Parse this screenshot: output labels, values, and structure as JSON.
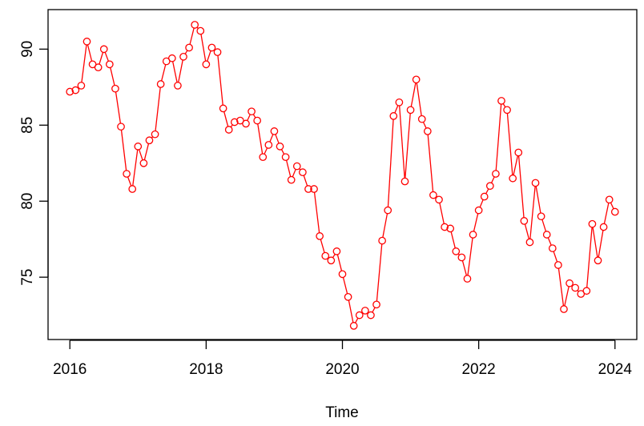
{
  "chart_data": {
    "type": "line",
    "title": "",
    "xlabel": "Time",
    "ylabel": "",
    "xlim": [
      2015.68,
      2024.32
    ],
    "ylim": [
      70.9,
      92.6
    ],
    "x_ticks": [
      2016,
      2018,
      2020,
      2022,
      2024
    ],
    "y_ticks": [
      75,
      80,
      85,
      90
    ],
    "grid": false,
    "legend": "none",
    "series": [
      {
        "color": "#ff0000",
        "marker": "open-circle",
        "x": [
          2016.0,
          2016.0833,
          2016.1667,
          2016.25,
          2016.3333,
          2016.4167,
          2016.5,
          2016.5833,
          2016.6667,
          2016.75,
          2016.8333,
          2016.9167,
          2017.0,
          2017.0833,
          2017.1667,
          2017.25,
          2017.3333,
          2017.4167,
          2017.5,
          2017.5833,
          2017.6667,
          2017.75,
          2017.8333,
          2017.9167,
          2018.0,
          2018.0833,
          2018.1667,
          2018.25,
          2018.3333,
          2018.4167,
          2018.5,
          2018.5833,
          2018.6667,
          2018.75,
          2018.8333,
          2018.9167,
          2019.0,
          2019.0833,
          2019.1667,
          2019.25,
          2019.3333,
          2019.4167,
          2019.5,
          2019.5833,
          2019.6667,
          2019.75,
          2019.8333,
          2019.9167,
          2020.0,
          2020.0833,
          2020.1667,
          2020.25,
          2020.3333,
          2020.4167,
          2020.5,
          2020.5833,
          2020.6667,
          2020.75,
          2020.8333,
          2020.9167,
          2021.0,
          2021.0833,
          2021.1667,
          2021.25,
          2021.3333,
          2021.4167,
          2021.5,
          2021.5833,
          2021.6667,
          2021.75,
          2021.8333,
          2021.9167,
          2022.0,
          2022.0833,
          2022.1667,
          2022.25,
          2022.3333,
          2022.4167,
          2022.5,
          2022.5833,
          2022.6667,
          2022.75,
          2022.8333,
          2022.9167,
          2023.0,
          2023.0833,
          2023.1667,
          2023.25,
          2023.3333,
          2023.4167,
          2023.5,
          2023.5833,
          2023.6667,
          2023.75,
          2023.8333,
          2023.9167,
          2024.0
        ],
        "y": [
          87.2,
          87.3,
          87.6,
          90.5,
          89.0,
          88.8,
          90.0,
          89.0,
          87.4,
          84.9,
          81.8,
          80.8,
          83.6,
          82.5,
          84.0,
          84.4,
          87.7,
          89.2,
          89.4,
          87.6,
          89.5,
          90.1,
          91.6,
          91.2,
          89.0,
          90.1,
          89.8,
          86.1,
          84.7,
          85.2,
          85.3,
          85.1,
          85.9,
          85.3,
          82.9,
          83.7,
          84.6,
          83.6,
          82.9,
          81.4,
          82.3,
          81.9,
          80.8,
          80.8,
          77.7,
          76.4,
          76.1,
          76.7,
          75.2,
          73.7,
          71.8,
          72.5,
          72.8,
          72.5,
          73.2,
          77.4,
          79.4,
          85.6,
          86.5,
          81.3,
          86.0,
          88.0,
          85.4,
          84.6,
          80.4,
          80.1,
          78.3,
          78.2,
          76.7,
          76.3,
          74.9,
          77.8,
          79.4,
          80.3,
          81.0,
          81.8,
          86.6,
          86.0,
          81.5,
          83.2,
          78.7,
          77.3,
          81.2,
          79.0,
          77.8,
          76.9,
          75.8,
          72.9,
          74.6,
          74.3,
          73.9,
          74.1,
          78.5,
          76.1,
          78.3,
          80.1,
          79.3
        ]
      }
    ]
  }
}
